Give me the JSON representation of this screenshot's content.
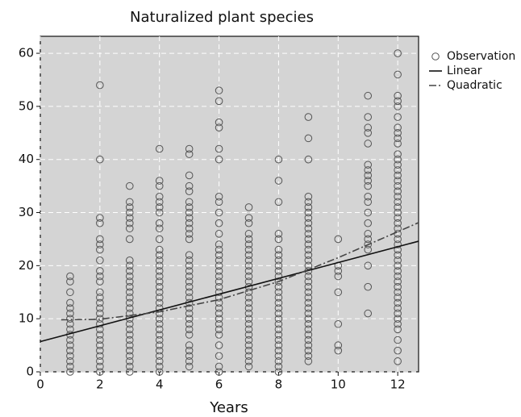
{
  "chart_data": {
    "type": "scatter",
    "title": "Naturalized plant species",
    "x_label": "Years",
    "xlim": [
      0,
      12.7
    ],
    "ylim": [
      0,
      63.2
    ],
    "xticks": [
      0,
      2,
      4,
      6,
      8,
      10,
      12
    ],
    "yticks": [
      0,
      10,
      20,
      30,
      40,
      50,
      60
    ],
    "grid": true,
    "legend": "right",
    "series": [
      {
        "name": "Observation",
        "color": "#555555",
        "style": "marker",
        "x": [
          1,
          1,
          1,
          1,
          1,
          1,
          1,
          1,
          1,
          1,
          1,
          1,
          1,
          1,
          1,
          1,
          1,
          2,
          2,
          2,
          2,
          2,
          2,
          2,
          2,
          2,
          2,
          2,
          2,
          2,
          2,
          2,
          2,
          2,
          2,
          2,
          2,
          2,
          2,
          2,
          2,
          2,
          2,
          2,
          3,
          3,
          3,
          3,
          3,
          3,
          3,
          3,
          3,
          3,
          3,
          3,
          3,
          3,
          3,
          3,
          3,
          3,
          3,
          3,
          3,
          3,
          3,
          3,
          3,
          3,
          3,
          3,
          3,
          3,
          4,
          4,
          4,
          4,
          4,
          4,
          4,
          4,
          4,
          4,
          4,
          4,
          4,
          4,
          4,
          4,
          4,
          4,
          4,
          4,
          4,
          4,
          4,
          4,
          4,
          4,
          4,
          4,
          4,
          4,
          4,
          4,
          4,
          4,
          5,
          5,
          5,
          5,
          5,
          5,
          5,
          5,
          5,
          5,
          5,
          5,
          5,
          5,
          5,
          5,
          5,
          5,
          5,
          5,
          5,
          5,
          5,
          5,
          5,
          5,
          5,
          5,
          5,
          5,
          5,
          5,
          5,
          5,
          6,
          6,
          6,
          6,
          6,
          6,
          6,
          6,
          6,
          6,
          6,
          6,
          6,
          6,
          6,
          6,
          6,
          6,
          6,
          6,
          6,
          6,
          6,
          6,
          6,
          6,
          6,
          6,
          6,
          6,
          6,
          6,
          6,
          7,
          7,
          7,
          7,
          7,
          7,
          7,
          7,
          7,
          7,
          7,
          7,
          7,
          7,
          7,
          7,
          7,
          7,
          7,
          7,
          7,
          7,
          7,
          7,
          7,
          7,
          7,
          7,
          7,
          8,
          8,
          8,
          8,
          8,
          8,
          8,
          8,
          8,
          8,
          8,
          8,
          8,
          8,
          8,
          8,
          8,
          8,
          8,
          8,
          8,
          8,
          8,
          8,
          8,
          8,
          8,
          8,
          8,
          9,
          9,
          9,
          9,
          9,
          9,
          9,
          9,
          9,
          9,
          9,
          9,
          9,
          9,
          9,
          9,
          9,
          9,
          9,
          9,
          9,
          9,
          9,
          9,
          9,
          9,
          9,
          9,
          9,
          9,
          9,
          9,
          9,
          9,
          9,
          10,
          10,
          10,
          10,
          10,
          10,
          10,
          10,
          11,
          11,
          11,
          11,
          11,
          11,
          11,
          11,
          11,
          11,
          11,
          11,
          11,
          11,
          11,
          11,
          11,
          11,
          11,
          11,
          11,
          12,
          12,
          12,
          12,
          12,
          12,
          12,
          12,
          12,
          12,
          12,
          12,
          12,
          12,
          12,
          12,
          12,
          12,
          12,
          12,
          12,
          12,
          12,
          12,
          12,
          12,
          12,
          12,
          12,
          12,
          12,
          12,
          12,
          12,
          12,
          12,
          12,
          12,
          12,
          12,
          12,
          12,
          12,
          12,
          12,
          12,
          12
        ],
        "values": [
          0,
          1,
          2,
          3,
          4,
          5,
          6,
          7,
          8,
          9,
          10,
          11,
          12,
          13,
          15,
          17,
          18,
          0,
          1,
          2,
          3,
          4,
          5,
          6,
          7,
          8,
          9,
          10,
          11,
          12,
          13,
          14,
          15,
          17,
          18,
          19,
          21,
          23,
          24,
          25,
          28,
          29,
          40,
          54,
          0,
          1,
          2,
          3,
          4,
          5,
          6,
          7,
          8,
          9,
          10,
          11,
          12,
          13,
          14,
          15,
          16,
          17,
          18,
          19,
          20,
          21,
          25,
          27,
          28,
          29,
          30,
          31,
          32,
          35,
          0,
          1,
          2,
          3,
          4,
          5,
          6,
          7,
          8,
          9,
          10,
          11,
          12,
          13,
          14,
          15,
          16,
          17,
          18,
          19,
          20,
          21,
          22,
          23,
          25,
          27,
          28,
          30,
          31,
          32,
          33,
          35,
          36,
          42,
          1,
          2,
          3,
          4,
          5,
          7,
          8,
          9,
          10,
          11,
          12,
          13,
          14,
          15,
          16,
          17,
          18,
          19,
          20,
          21,
          22,
          25,
          26,
          27,
          28,
          29,
          30,
          31,
          32,
          34,
          35,
          37,
          41,
          42,
          0,
          1,
          3,
          5,
          7,
          8,
          9,
          10,
          11,
          12,
          13,
          14,
          15,
          16,
          17,
          18,
          19,
          20,
          21,
          22,
          23,
          24,
          26,
          28,
          30,
          32,
          33,
          40,
          42,
          46,
          47,
          51,
          53,
          1,
          2,
          3,
          4,
          5,
          6,
          7,
          8,
          9,
          10,
          11,
          12,
          13,
          14,
          15,
          16,
          17,
          18,
          19,
          20,
          21,
          22,
          23,
          24,
          25,
          26,
          28,
          29,
          31,
          0,
          1,
          2,
          3,
          4,
          5,
          6,
          7,
          8,
          9,
          10,
          11,
          12,
          13,
          14,
          15,
          16,
          17,
          18,
          19,
          20,
          21,
          22,
          23,
          25,
          26,
          32,
          36,
          40,
          2,
          3,
          4,
          5,
          6,
          7,
          8,
          9,
          10,
          11,
          12,
          13,
          14,
          15,
          16,
          17,
          18,
          19,
          20,
          21,
          22,
          23,
          24,
          25,
          26,
          27,
          28,
          29,
          30,
          31,
          32,
          33,
          40,
          44,
          48,
          4,
          5,
          9,
          15,
          18,
          19,
          20,
          25,
          11,
          16,
          20,
          23,
          24,
          25,
          26,
          28,
          30,
          32,
          33,
          35,
          36,
          37,
          38,
          39,
          43,
          45,
          46,
          48,
          52,
          2,
          4,
          6,
          8,
          9,
          10,
          11,
          12,
          13,
          14,
          15,
          16,
          17,
          18,
          19,
          20,
          21,
          22,
          23,
          24,
          25,
          26,
          27,
          28,
          29,
          30,
          31,
          32,
          33,
          34,
          35,
          36,
          37,
          38,
          39,
          40,
          41,
          43,
          44,
          45,
          46,
          48,
          50,
          51,
          52,
          56,
          60
        ]
      },
      {
        "name": "Linear",
        "color": "#111111",
        "style": "solid",
        "x": [
          0,
          12.7
        ],
        "values": [
          5.7,
          24.6
        ]
      },
      {
        "name": "Quadratic",
        "color": "#444444",
        "style": "dashdot",
        "x": [
          0.7,
          2,
          4,
          6,
          8,
          10,
          12.7
        ],
        "values": [
          9.8,
          9.9,
          11.3,
          13.6,
          17.0,
          21.5,
          28.1
        ]
      }
    ]
  }
}
